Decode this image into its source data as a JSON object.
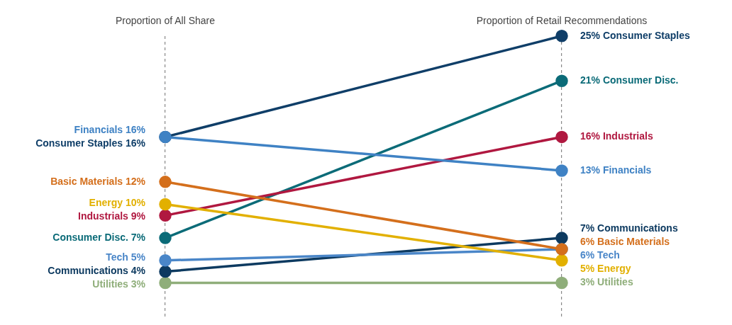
{
  "chart_data": {
    "type": "line",
    "categories": [
      "Proportion of All Share",
      "Proportion of Retail Recommendations"
    ],
    "grid": "x",
    "legend": false,
    "marker": "circle",
    "line_style": "solid",
    "series": [
      {
        "name": "Financials",
        "color": "#3f82c4",
        "values": [
          16,
          13
        ],
        "value_labels": [
          "16%",
          "13%"
        ]
      },
      {
        "name": "Consumer Staples",
        "color": "#0f3e68",
        "values": [
          16,
          25
        ],
        "value_labels": [
          "16%",
          "25%"
        ]
      },
      {
        "name": "Basic Materials",
        "color": "#d46f1c",
        "values": [
          12,
          6
        ],
        "value_labels": [
          "12%",
          "6%"
        ]
      },
      {
        "name": "Energy",
        "color": "#e2b000",
        "values": [
          10,
          5
        ],
        "value_labels": [
          "10%",
          "5%"
        ]
      },
      {
        "name": "Industrials",
        "color": "#b01840",
        "values": [
          9,
          16
        ],
        "value_labels": [
          "9%",
          "16%"
        ]
      },
      {
        "name": "Consumer Disc.",
        "color": "#0b6b78",
        "values": [
          7,
          21
        ],
        "value_labels": [
          "7%",
          "21%"
        ]
      },
      {
        "name": "Tech",
        "color": "#4a86c8",
        "values": [
          5,
          6
        ],
        "value_labels": [
          "5%",
          "6%"
        ]
      },
      {
        "name": "Communications",
        "color": "#0d3a60",
        "values": [
          4,
          7
        ],
        "value_labels": [
          "4%",
          "7%"
        ]
      },
      {
        "name": "Utilities",
        "color": "#8fae7a",
        "values": [
          3,
          3
        ],
        "value_labels": [
          "3%",
          "3%"
        ]
      }
    ]
  }
}
